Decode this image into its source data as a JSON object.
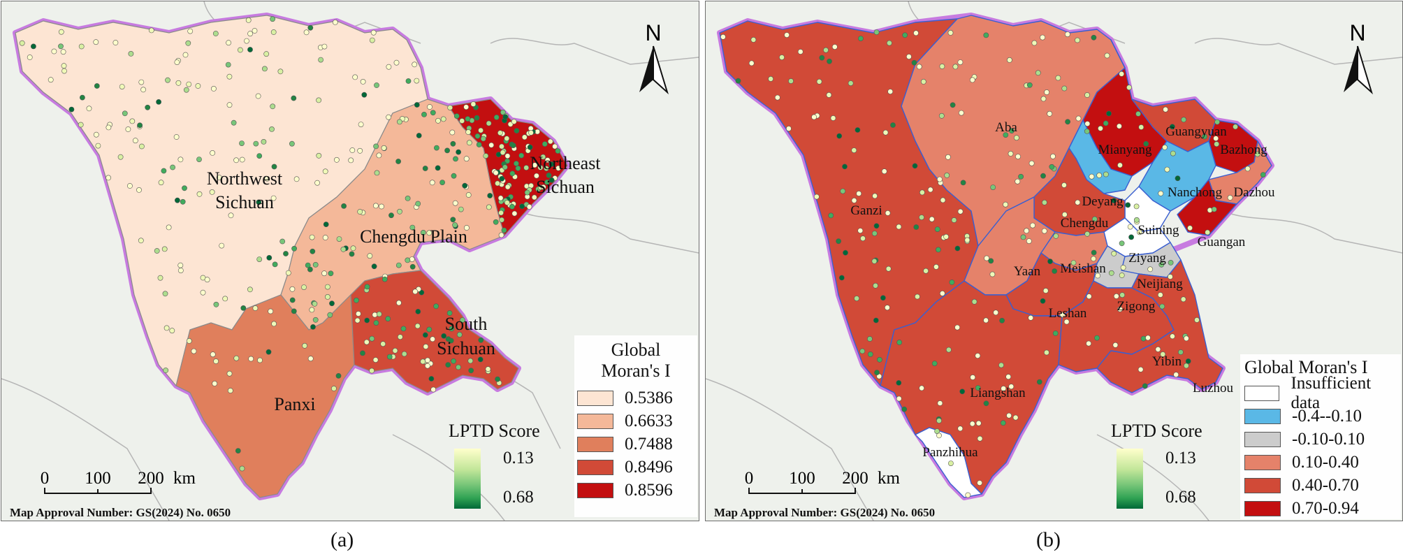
{
  "panel_a": {
    "caption": "(a)",
    "approval": "Map Approval Number: GS(2024) No. 0650",
    "north": "N",
    "regions": [
      {
        "name_line1": "Northwest",
        "name_line2": "Sichuan",
        "color": "#fde5d3",
        "moran": "0.5386"
      },
      {
        "name_line1": "Chengdu Plain",
        "name_line2": "",
        "color": "#f4b899",
        "moran": "0.6633"
      },
      {
        "name_line1": "Panxi",
        "name_line2": "",
        "color": "#e07f5c",
        "moran": "0.7488"
      },
      {
        "name_line1": "South",
        "name_line2": "Sichuan",
        "color": "#d14a37",
        "moran": "0.8496"
      },
      {
        "name_line1": "Northeast",
        "name_line2": "Sichuan",
        "color": "#c30f10",
        "moran": "0.8596"
      }
    ],
    "legend_title_line1": "Global",
    "legend_title_line2": "Moran's I",
    "legend_items": [
      {
        "label": "0.5386",
        "color": "#fde5d3"
      },
      {
        "label": "0.6633",
        "color": "#f4b899"
      },
      {
        "label": "0.7488",
        "color": "#e07f5c"
      },
      {
        "label": "0.8496",
        "color": "#d14a37"
      },
      {
        "label": "0.8596",
        "color": "#c30f10"
      }
    ],
    "score_title": "LPTD Score",
    "score_min": "0.13",
    "score_max": "0.68",
    "scale": {
      "t0": "0",
      "t1": "100",
      "t2": "200",
      "unit": "km"
    }
  },
  "panel_b": {
    "caption": "(b)",
    "approval": "Map Approval Number: GS(2024) No. 0650",
    "north": "N",
    "cities": [
      "Aba",
      "Ganzi",
      "Mianyang",
      "Guangyuan",
      "Bazhong",
      "Nanchong",
      "Dazhou",
      "Deyang",
      "Chengdu",
      "Suining",
      "Guangan",
      "Ziyang",
      "Yaan",
      "Meishan",
      "Neijiang",
      "Zigong",
      "Leshan",
      "Yibin",
      "Luzhou",
      "Liangshan",
      "Panzhihua"
    ],
    "legend_title": "Global Moran's I",
    "legend_items": [
      {
        "label": "Insufficient data",
        "color": "#ffffff"
      },
      {
        "label": "-0.4--0.10",
        "color": "#5ab8e6"
      },
      {
        "label": "-0.10-0.10",
        "color": "#cccccc"
      },
      {
        "label": "0.10-0.40",
        "color": "#e5826a"
      },
      {
        "label": "0.40-0.70",
        "color": "#d14a37"
      },
      {
        "label": "0.70-0.94",
        "color": "#c30f10"
      }
    ],
    "score_title": "LPTD Score",
    "score_min": "0.13",
    "score_max": "0.68",
    "scale": {
      "t0": "0",
      "t1": "100",
      "t2": "200",
      "unit": "km"
    }
  }
}
